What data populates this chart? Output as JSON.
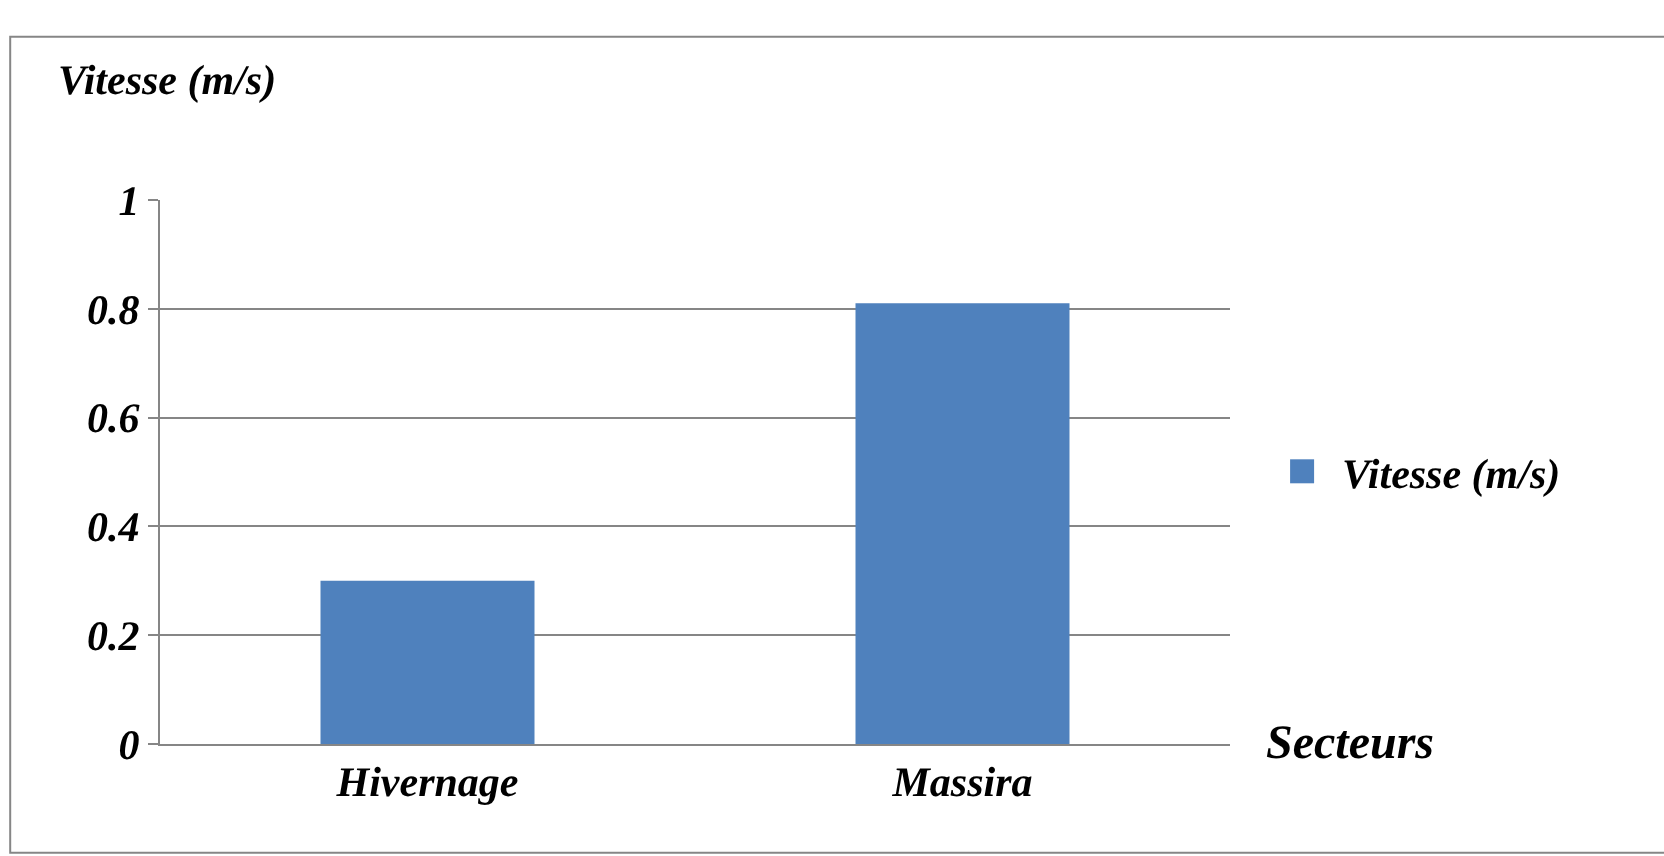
{
  "chart_data": {
    "type": "bar",
    "ylabel": "Vitesse (m/s)",
    "xlabel": "Secteurs",
    "categories": [
      "Hivernage",
      "Massira"
    ],
    "series": [
      {
        "name": "Vitesse (m/s)",
        "color": "#4f81bd",
        "values": [
          0.3,
          0.81
        ]
      }
    ],
    "ylim": [
      0,
      1
    ],
    "yticks": [
      0,
      0.2,
      0.4,
      0.6,
      0.8,
      1
    ],
    "grid": "y",
    "legend": "right"
  }
}
